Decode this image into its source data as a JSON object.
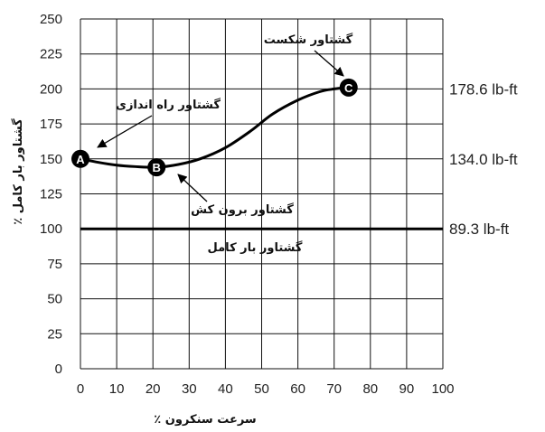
{
  "chart_data": {
    "type": "line",
    "xlabel": "٪ سرعت سنکرون",
    "ylabel": "٪ گشتاور بار کامل",
    "xlim": [
      0,
      100
    ],
    "ylim": [
      0,
      250
    ],
    "x_ticks": [
      0,
      10,
      20,
      30,
      40,
      50,
      60,
      70,
      80,
      90,
      100
    ],
    "y_ticks": [
      0,
      25,
      50,
      75,
      100,
      125,
      150,
      175,
      200,
      225,
      250
    ],
    "grid": true,
    "series": [
      {
        "x": [
          0,
          5,
          10,
          15,
          21,
          27,
          33,
          40,
          47,
          53,
          60,
          66,
          70,
          74
        ],
        "y": [
          150,
          147.5,
          145.5,
          144.5,
          144,
          146,
          150,
          158,
          170,
          182,
          192,
          198,
          200,
          201
        ],
        "color": "#000000"
      }
    ],
    "points": [
      {
        "label": "A",
        "x": 0,
        "y": 150
      },
      {
        "label": "B",
        "x": 21,
        "y": 144
      },
      {
        "label": "C",
        "x": 74,
        "y": 201
      }
    ],
    "reference_lines": [
      {
        "y": 100,
        "label": "89.3 lb-ft",
        "annotation": "گشتاور بار کامل"
      }
    ],
    "right_labels": [
      {
        "y": 200,
        "text": "178.6 lb-ft"
      },
      {
        "y": 150,
        "text": "134.0 lb-ft"
      },
      {
        "y": 100,
        "text": "89.3 lb-ft"
      }
    ],
    "annotations": [
      {
        "text": "گشتاور شکست",
        "target": "C"
      },
      {
        "text": "گشتاور راه اندازی",
        "target": "A"
      },
      {
        "text": "گشتاور برون کش",
        "target": "B"
      },
      {
        "text": "گشتاور بار کامل",
        "target": "full-load-line"
      }
    ]
  }
}
